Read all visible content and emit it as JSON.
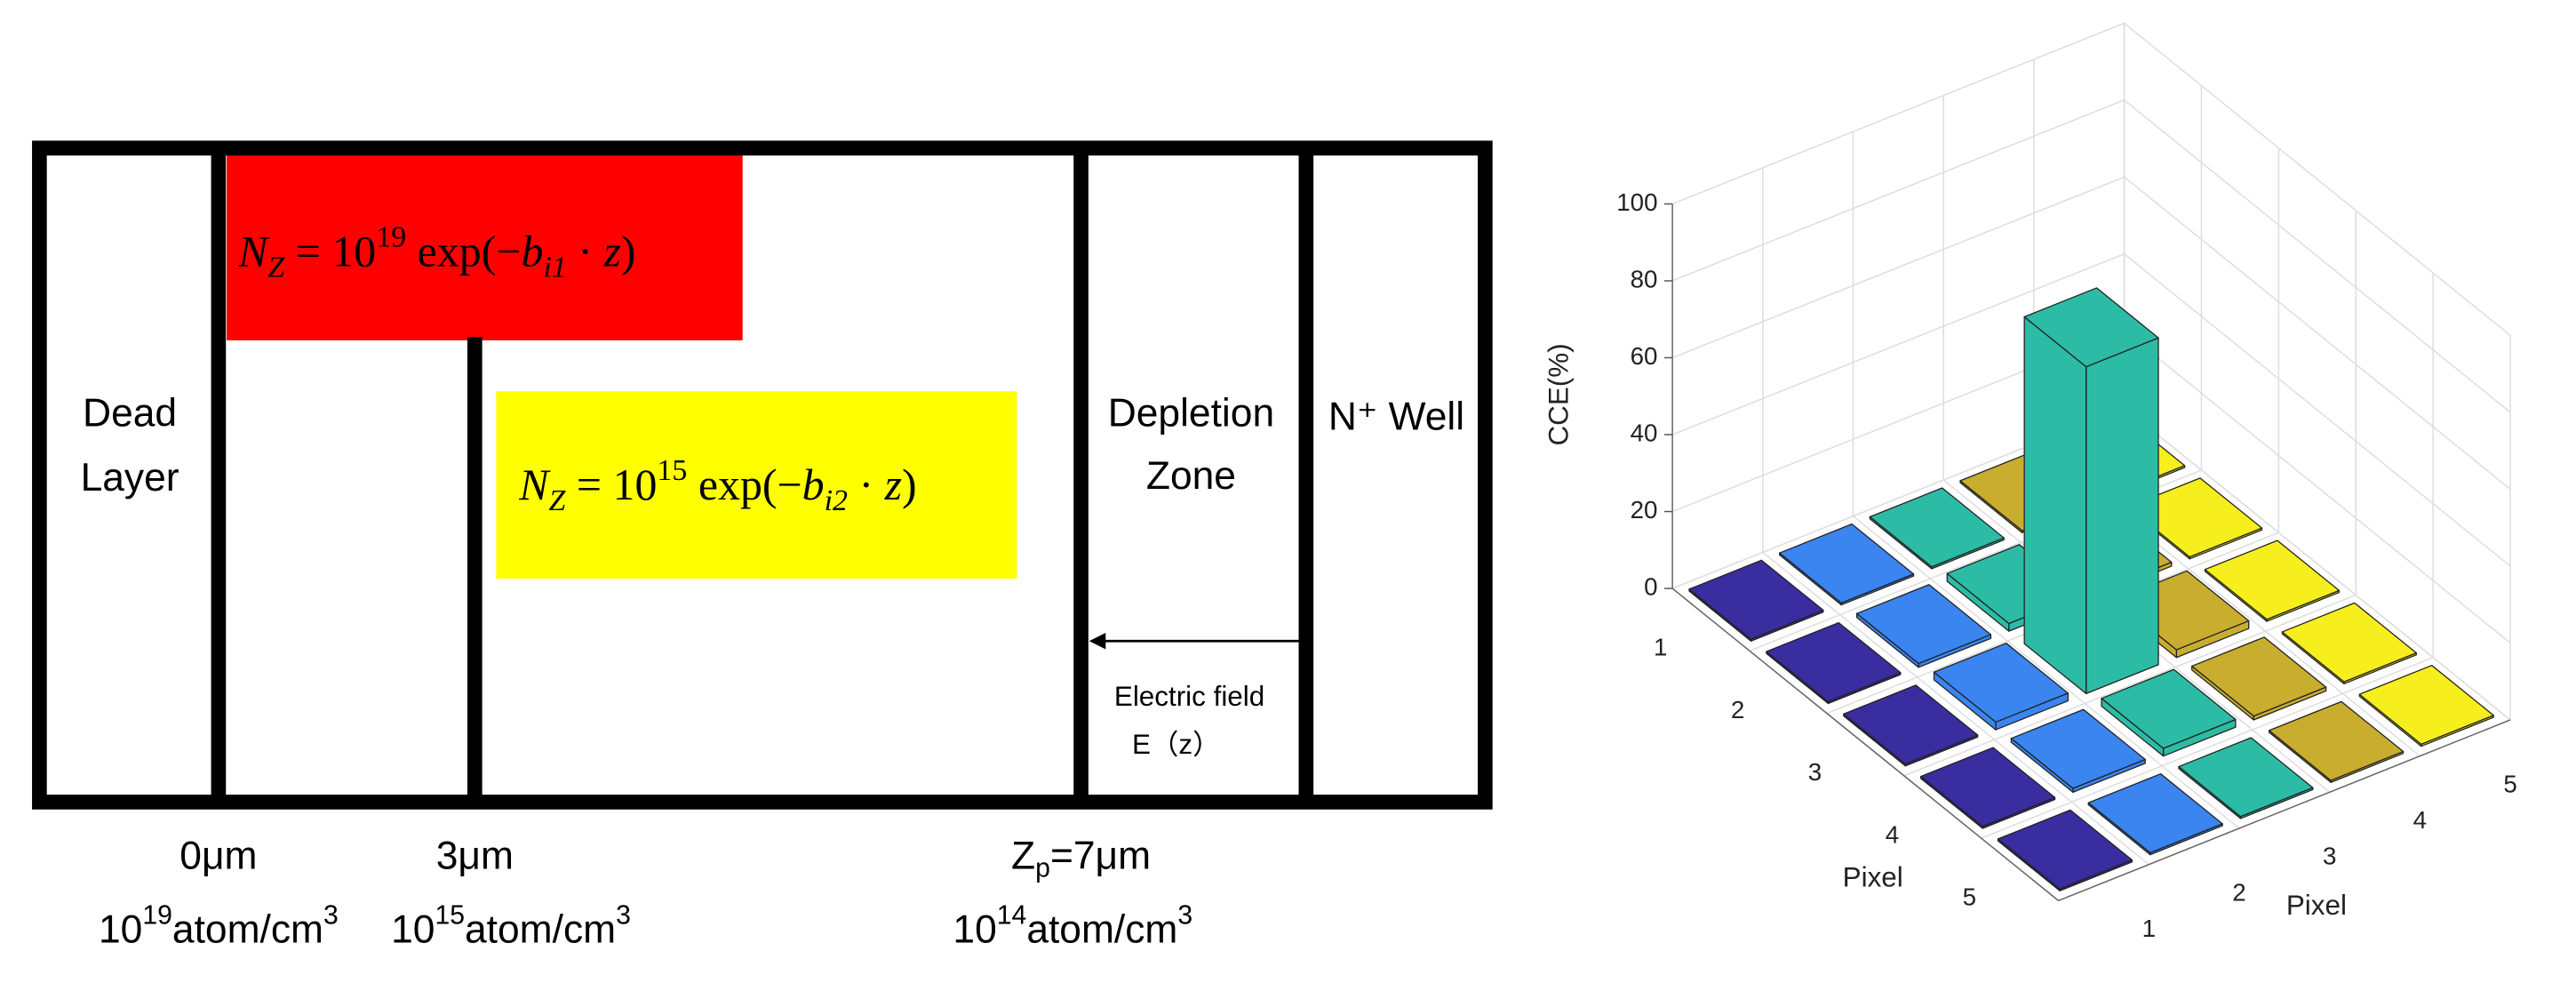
{
  "diagram": {
    "regions": {
      "dead_layer": [
        "Dead",
        "Layer"
      ],
      "depletion_zone": [
        "Depletion",
        "Zone"
      ],
      "n_well": "N⁺ Well"
    },
    "equations": [
      {
        "parts": [
          {
            "i": "N"
          },
          {
            "sub": "Z"
          },
          {
            "t": " = 10"
          },
          {
            "sup": "19"
          },
          {
            "t": " exp(−"
          },
          {
            "i": "b"
          },
          {
            "sub": "i1"
          },
          {
            "t": " · "
          },
          {
            "i": "z"
          },
          {
            "t": ")"
          }
        ]
      },
      {
        "parts": [
          {
            "i": "N"
          },
          {
            "sub": "Z"
          },
          {
            "t": " = 10"
          },
          {
            "sup": "15"
          },
          {
            "t": " exp(−"
          },
          {
            "i": "b"
          },
          {
            "sub": "i2"
          },
          {
            "t": " · "
          },
          {
            "i": "z"
          },
          {
            "t": ")"
          }
        ]
      }
    ],
    "field": [
      "Electric field",
      "E（z）"
    ],
    "positions": [
      {
        "parts": [
          {
            "t": "0μm"
          }
        ]
      },
      {
        "parts": [
          {
            "t": "3μm"
          }
        ]
      },
      {
        "parts": [
          {
            "t": "Z"
          },
          {
            "sub": "p"
          },
          {
            "t": "=7μm"
          }
        ]
      }
    ],
    "concentrations": [
      {
        "parts": [
          {
            "t": "10"
          },
          {
            "sup": "19"
          },
          {
            "t": "atom/cm"
          },
          {
            "sup": "3"
          }
        ]
      },
      {
        "parts": [
          {
            "t": "10"
          },
          {
            "sup": "15"
          },
          {
            "t": "atom/cm"
          },
          {
            "sup": "3"
          }
        ]
      },
      {
        "parts": [
          {
            "t": "10"
          },
          {
            "sup": "14"
          },
          {
            "t": "atom/cm"
          },
          {
            "sup": "3"
          }
        ]
      }
    ]
  },
  "chart_data": {
    "type": "bar3d",
    "zlabel": "CCE(%)",
    "xlabel": "Pixel",
    "ylabel": "Pixel",
    "x": [
      1,
      2,
      3,
      4,
      5
    ],
    "y": [
      1,
      2,
      3,
      4,
      5
    ],
    "values": [
      [
        0.5,
        0.5,
        0.5,
        0.5,
        0.5
      ],
      [
        0.5,
        1,
        2,
        1,
        0.5
      ],
      [
        0.5,
        2,
        85,
        2,
        0.5
      ],
      [
        0.5,
        1,
        2,
        1,
        0.5
      ],
      [
        0.5,
        0.5,
        0.5,
        0.5,
        0.5
      ]
    ],
    "colors": [
      "#3a2da0",
      "#3a85f0",
      "#2cbca6",
      "#c9ad2e",
      "#f7ee1e"
    ],
    "zlim": [
      0,
      100
    ],
    "zticks": [
      0,
      20,
      40,
      60,
      80,
      100
    ],
    "grid": true
  }
}
